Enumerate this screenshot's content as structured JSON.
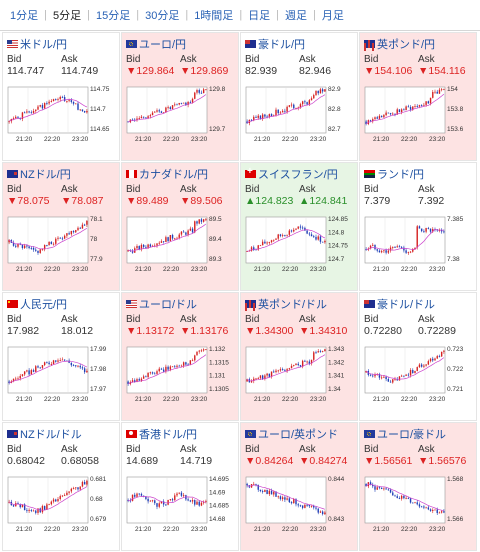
{
  "tabs": [
    "1分足",
    "5分足",
    "15分足",
    "30分足",
    "1時間足",
    "日足",
    "週足",
    "月足"
  ],
  "active_tab": "5分足",
  "labels": {
    "bid": "Bid",
    "ask": "Ask"
  },
  "colors": {
    "down_bg": "#fde3e3",
    "up_bg": "#e7f5e4",
    "candle_up": "#d62222",
    "candle_down": "#2040b8",
    "ma": "#cc44cc"
  },
  "time_labels": [
    "21:20",
    "22:20",
    "23:20"
  ],
  "pairs": [
    {
      "name": "米ドル/円",
      "flag": "us",
      "dir": "flat",
      "bid": "114.747",
      "ask": "114.749",
      "axis": [
        "114.75",
        "114.7",
        "114.65"
      ],
      "seed": 1,
      "trend": "up-down"
    },
    {
      "name": "ユーロ/円",
      "flag": "eu",
      "dir": "down",
      "bid": "▼129.864",
      "ask": "▼129.869",
      "axis": [
        "129.8",
        "129.7"
      ],
      "seed": 2,
      "trend": "up"
    },
    {
      "name": "豪ドル/円",
      "flag": "au",
      "dir": "flat",
      "bid": "82.939",
      "ask": "82.946",
      "axis": [
        "82.9",
        "82.8",
        "82.7"
      ],
      "seed": 3,
      "trend": "up"
    },
    {
      "name": "英ポンド/円",
      "flag": "gb",
      "dir": "down",
      "bid": "▼154.106",
      "ask": "▼154.116",
      "axis": [
        "154",
        "153.8",
        "153.6"
      ],
      "seed": 4,
      "trend": "up"
    },
    {
      "name": "NZドル/円",
      "flag": "nz",
      "dir": "down",
      "bid": "▼78.075",
      "ask": "▼78.087",
      "axis": [
        "78.1",
        "78",
        "77.9"
      ],
      "seed": 5,
      "trend": "dip-up"
    },
    {
      "name": "カナダドル/円",
      "flag": "ca",
      "dir": "down",
      "bid": "▼89.489",
      "ask": "▼89.506",
      "axis": [
        "89.5",
        "89.4",
        "89.3"
      ],
      "seed": 6,
      "trend": "up"
    },
    {
      "name": "スイスフラン/円",
      "flag": "ch",
      "dir": "up",
      "bid": "▲124.823",
      "ask": "▲124.841",
      "axis": [
        "124.85",
        "124.8",
        "124.75",
        "124.7"
      ],
      "seed": 7,
      "trend": "up-down"
    },
    {
      "name": "ランド/円",
      "flag": "za",
      "dir": "flat",
      "bid": "7.379",
      "ask": "7.392",
      "axis": [
        "7.385",
        "7.38"
      ],
      "seed": 8,
      "trend": "flat-spike"
    },
    {
      "name": "人民元/円",
      "flag": "cn",
      "dir": "flat",
      "bid": "17.982",
      "ask": "18.012",
      "axis": [
        "17.99",
        "17.98",
        "17.97"
      ],
      "seed": 9,
      "trend": "up-down"
    },
    {
      "name": "ユーロ/ドル",
      "flag": "us",
      "dir": "down",
      "bid": "▼1.13172",
      "ask": "▼1.13176",
      "axis": [
        "1.132",
        "1.1315",
        "1.131",
        "1.1305"
      ],
      "seed": 10,
      "trend": "up"
    },
    {
      "name": "英ポンド/ドル",
      "flag": "gb",
      "dir": "down",
      "bid": "▼1.34300",
      "ask": "▼1.34310",
      "axis": [
        "1.343",
        "1.342",
        "1.341",
        "1.34"
      ],
      "seed": 11,
      "trend": "up"
    },
    {
      "name": "豪ドル/ドル",
      "flag": "au",
      "dir": "flat",
      "bid": "0.72280",
      "ask": "0.72289",
      "axis": [
        "0.723",
        "0.722",
        "0.721"
      ],
      "seed": 12,
      "trend": "dip-up"
    },
    {
      "name": "NZドル/ドル",
      "flag": "nz",
      "dir": "flat",
      "bid": "0.68042",
      "ask": "0.68058",
      "axis": [
        "0.681",
        "0.68",
        "0.679"
      ],
      "seed": 13,
      "trend": "dip-up"
    },
    {
      "name": "香港ドル/円",
      "flag": "hk",
      "dir": "flat",
      "bid": "14.689",
      "ask": "14.719",
      "axis": [
        "14.695",
        "14.69",
        "14.685",
        "14.68"
      ],
      "seed": 14,
      "trend": "flat"
    },
    {
      "name": "ユーロ/英ポンド",
      "flag": "eu",
      "dir": "down",
      "bid": "▼0.84264",
      "ask": "▼0.84274",
      "axis": [
        "0.844",
        "0.843"
      ],
      "seed": 15,
      "trend": "down"
    },
    {
      "name": "ユーロ/豪ドル",
      "flag": "eu",
      "dir": "down",
      "bid": "▼1.56561",
      "ask": "▼1.56576",
      "axis": [
        "1.568",
        "1.566"
      ],
      "seed": 16,
      "trend": "down"
    }
  ]
}
